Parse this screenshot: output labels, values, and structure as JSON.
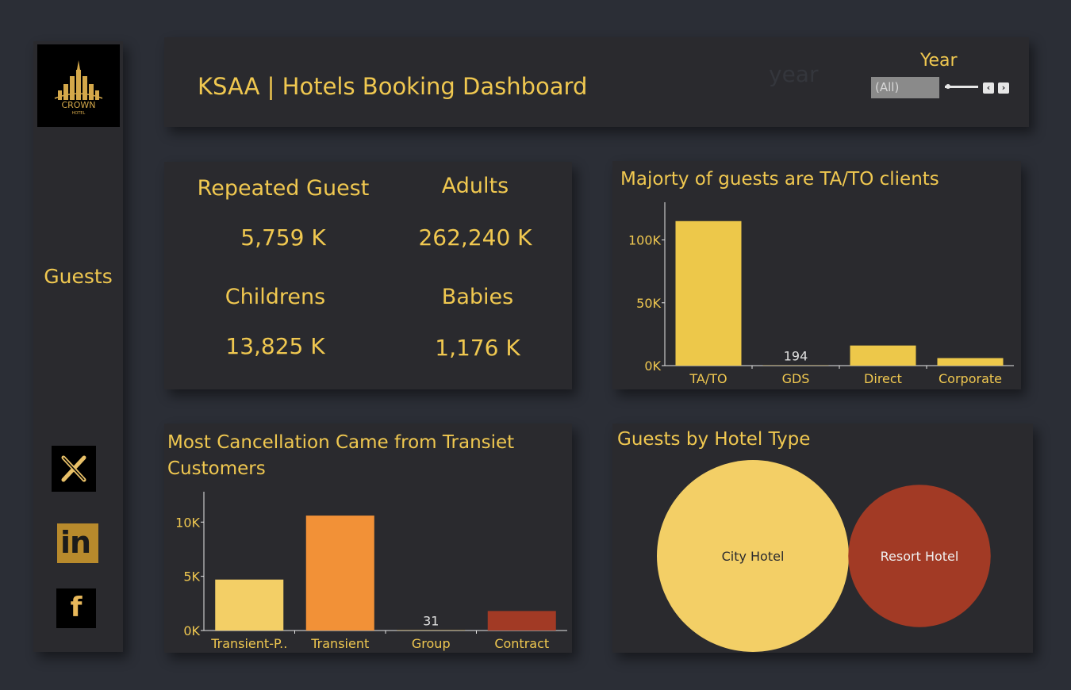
{
  "sidebar": {
    "logo": {
      "brand": "CROWN",
      "sub": "HOTEL",
      "icon": "crown-hotel-skyline-logo"
    },
    "nav": {
      "guests_label": "Guests"
    },
    "social": [
      {
        "name": "x-icon",
        "glyph": "𝕏"
      },
      {
        "name": "linkedin-icon",
        "glyph": "in"
      },
      {
        "name": "facebook-icon",
        "glyph": "f"
      }
    ]
  },
  "header": {
    "title": "KSAA | Hotels Booking Dashboard",
    "year_filter": {
      "label": "Year",
      "selected": "(All)",
      "ghost_text": "year"
    }
  },
  "kpis": {
    "repeated_guest": {
      "label": "Repeated Guest",
      "value": "5,759 K"
    },
    "adults": {
      "label": "Adults",
      "value": "262,240 K"
    },
    "childrens": {
      "label": "Childrens",
      "value": "13,825 K"
    },
    "babies": {
      "label": "Babies",
      "value": "1,176 K"
    }
  },
  "colors": {
    "gold": "#f0c850",
    "bar_yellow": "#edc84a",
    "light_yellow": "#f3cf66",
    "orange": "#f29137",
    "rust": "#a23a25"
  },
  "chart_data": [
    {
      "type": "bar",
      "title": "Majorty of guests are TA/TO clients",
      "categories": [
        "TA/TO",
        "GDS",
        "Direct",
        "Corporate"
      ],
      "values": [
        115000,
        194,
        16000,
        6000
      ],
      "data_labels": {
        "GDS": "194"
      },
      "ylim": [
        0,
        130000
      ],
      "yticks": [
        0,
        50000,
        100000
      ],
      "ytick_labels": [
        "0K",
        "50K",
        "100K"
      ],
      "colors": [
        "#edc84a",
        "#edc84a",
        "#edc84a",
        "#edc84a"
      ],
      "xlabel": "",
      "ylabel": ""
    },
    {
      "type": "bar",
      "title": "Most Cancellation Came from Transiet Customers",
      "categories": [
        "Transient-P..",
        "Transient",
        "Group",
        "Contract"
      ],
      "values": [
        4700,
        10600,
        31,
        1800
      ],
      "data_labels": {
        "Group": "31"
      },
      "ylim": [
        0,
        12800
      ],
      "yticks": [
        0,
        5000,
        10000
      ],
      "ytick_labels": [
        "0K",
        "5K",
        "10K"
      ],
      "colors": [
        "#f3cf66",
        "#f29137",
        "#f3cf66",
        "#a23a25"
      ],
      "xlabel": "",
      "ylabel": ""
    },
    {
      "type": "bubble",
      "title": "Guests by Hotel Type",
      "categories": [
        "City Hotel",
        "Resort Hotel"
      ],
      "values": [
        1.0,
        0.55
      ],
      "colors": [
        "#f3cf66",
        "#a23a25"
      ],
      "label_colors": [
        "#2a2a2e",
        "#f0f0f0"
      ]
    }
  ]
}
